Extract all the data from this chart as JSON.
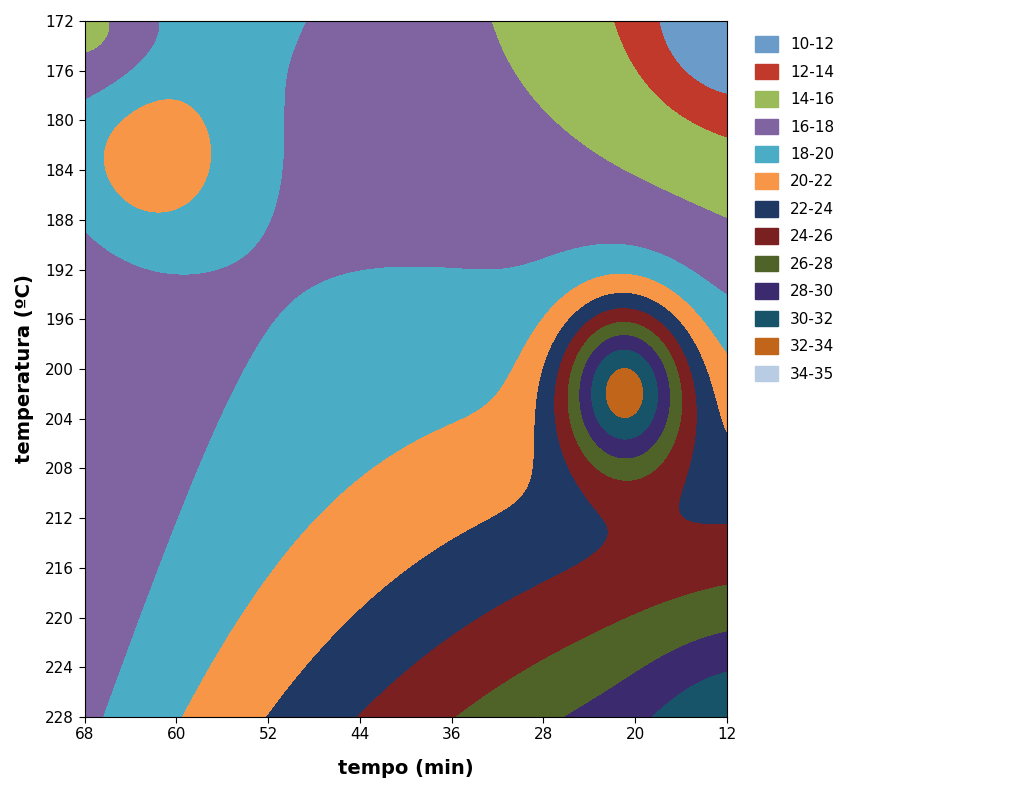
{
  "xlabel": "tempo (min)",
  "ylabel": "temperatura (ºC)",
  "x_ticks": [
    68,
    60,
    52,
    44,
    36,
    28,
    20,
    12
  ],
  "y_ticks": [
    172,
    176,
    180,
    184,
    188,
    192,
    196,
    200,
    204,
    208,
    212,
    216,
    220,
    224,
    228
  ],
  "x_range": [
    12,
    68
  ],
  "y_range": [
    172,
    228
  ],
  "levels": [
    10,
    12,
    14,
    16,
    18,
    20,
    22,
    24,
    26,
    28,
    30,
    32,
    34,
    35
  ],
  "legend_labels": [
    "10-12",
    "12-14",
    "14-16",
    "16-18",
    "18-20",
    "20-22",
    "22-24",
    "24-26",
    "26-28",
    "28-30",
    "30-32",
    "32-34",
    "34-35"
  ],
  "legend_colors": [
    "#6b9bc9",
    "#c0392b",
    "#9bba59",
    "#8064a2",
    "#4bacc6",
    "#f79646",
    "#1f3864",
    "#7b2020",
    "#4f6228",
    "#3b2a6e",
    "#17546a",
    "#c0651a",
    "#b8cce4"
  ],
  "figsize": [
    10.24,
    7.93
  ],
  "dpi": 100
}
